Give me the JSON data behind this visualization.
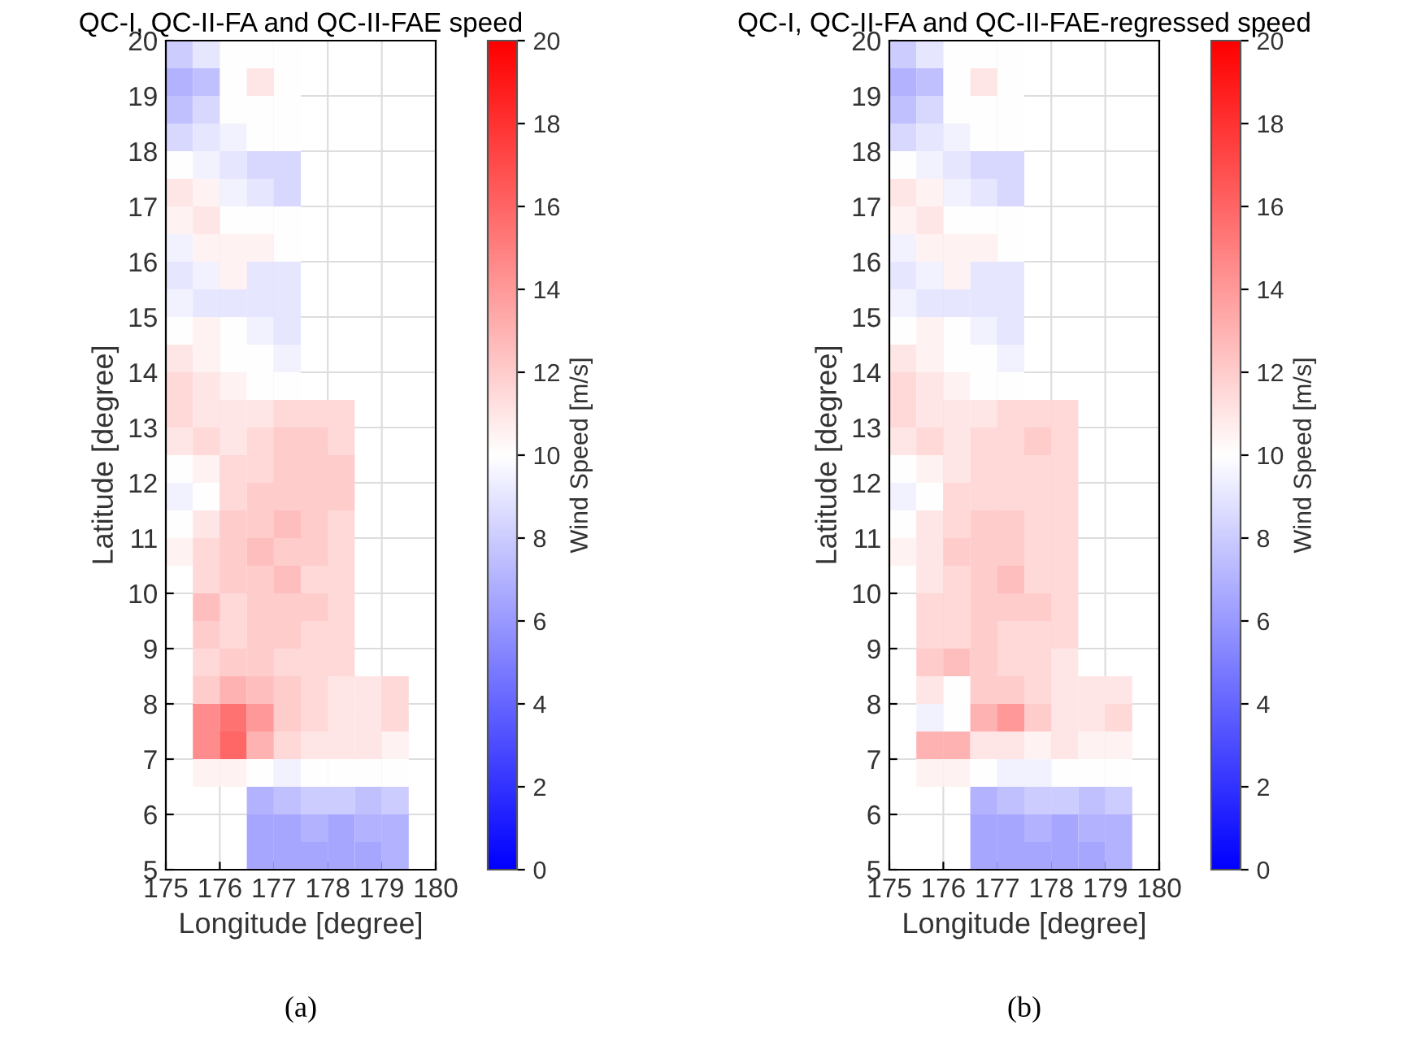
{
  "chart_data": [
    {
      "type": "heatmap",
      "title": "QC-I, QC-II-FA and QC-II-FAE speed",
      "xlabel": "Longitude [degree]",
      "ylabel": "Latitude [degree]",
      "clabel": "Wind Speed [m/s]",
      "annotations": [
        "(a)"
      ],
      "xlim": [
        175,
        180
      ],
      "ylim": [
        5,
        20
      ],
      "xticks": [
        175,
        176,
        177,
        178,
        179,
        180
      ],
      "yticks": [
        5,
        6,
        7,
        8,
        9,
        10,
        11,
        12,
        13,
        14,
        15,
        16,
        17,
        18,
        19,
        20
      ],
      "clim": [
        0,
        20
      ],
      "cticks": [
        0,
        2,
        4,
        6,
        8,
        10,
        12,
        14,
        16,
        18,
        20
      ],
      "grid": true,
      "cells": [
        [
          8,
          9,
          10,
          10,
          10,
          null,
          null,
          null,
          null,
          null
        ],
        [
          7,
          7.5,
          10,
          11,
          10,
          null,
          null,
          null,
          null,
          null
        ],
        [
          7.5,
          8.5,
          10,
          10,
          10,
          null,
          null,
          null,
          null,
          null
        ],
        [
          8.5,
          9,
          9.5,
          10,
          10,
          null,
          null,
          null,
          null,
          null
        ],
        [
          10,
          9.5,
          9,
          8.5,
          8.5,
          null,
          null,
          null,
          null,
          null
        ],
        [
          11,
          10.5,
          9.5,
          9,
          8.5,
          null,
          null,
          null,
          null,
          null
        ],
        [
          10.5,
          11,
          10,
          10,
          10,
          null,
          null,
          null,
          null,
          null
        ],
        [
          9.5,
          10.5,
          10.5,
          10.5,
          10,
          null,
          null,
          null,
          null,
          null
        ],
        [
          9,
          9.5,
          10.5,
          9,
          9,
          null,
          null,
          null,
          null,
          null
        ],
        [
          9.5,
          9,
          9,
          9,
          9,
          null,
          null,
          null,
          null,
          null
        ],
        [
          10,
          10.5,
          10,
          9.5,
          9,
          null,
          null,
          null,
          null,
          null
        ],
        [
          11,
          10.5,
          10,
          10,
          9.5,
          null,
          null,
          null,
          null,
          null
        ],
        [
          11.5,
          11,
          10.5,
          10,
          10,
          null,
          null,
          null,
          null,
          null
        ],
        [
          11.5,
          11,
          11,
          11,
          11.5,
          11.5,
          11.5,
          null,
          null,
          null
        ],
        [
          11,
          11.5,
          11,
          11.5,
          12,
          12,
          11.5,
          null,
          null,
          null
        ],
        [
          10,
          10.5,
          11.5,
          11.5,
          12,
          12,
          12,
          null,
          null,
          null
        ],
        [
          9.5,
          10,
          11.5,
          12,
          12,
          12,
          12,
          null,
          null,
          null
        ],
        [
          10,
          11,
          12,
          12,
          12.5,
          12,
          11.5,
          null,
          null,
          null
        ],
        [
          10.5,
          11.5,
          12,
          12.5,
          12,
          12,
          11.5,
          null,
          null,
          null
        ],
        [
          null,
          11.5,
          12,
          12,
          12.5,
          11.5,
          11.5,
          null,
          null,
          null
        ],
        [
          null,
          12.5,
          11.5,
          12,
          12,
          12,
          11.5,
          null,
          null,
          null
        ],
        [
          null,
          12,
          11.5,
          12,
          12,
          11.5,
          11.5,
          null,
          null,
          null
        ],
        [
          null,
          11.5,
          12,
          12,
          11.5,
          11.5,
          11.5,
          null,
          null,
          null
        ],
        [
          null,
          12,
          13,
          12.5,
          12,
          11.5,
          11,
          11,
          11.5,
          null
        ],
        [
          null,
          14.5,
          15.5,
          14,
          12,
          11.5,
          11,
          11,
          11.5,
          null
        ],
        [
          null,
          14.5,
          16,
          13,
          11.5,
          11,
          11,
          11,
          10.5,
          null
        ],
        [
          null,
          10.5,
          10.5,
          10,
          9.5,
          10,
          10,
          10,
          10,
          null
        ],
        [
          null,
          null,
          null,
          7,
          7.5,
          8,
          8,
          7.5,
          8,
          null
        ],
        [
          null,
          null,
          null,
          6.5,
          6.5,
          7,
          6.5,
          7,
          7,
          null
        ],
        [
          null,
          null,
          null,
          6.5,
          6.5,
          6.5,
          6.5,
          6.5,
          7,
          null
        ]
      ]
    },
    {
      "type": "heatmap",
      "title": "QC-I, QC-II-FA and QC-II-FAE-regressed speed",
      "xlabel": "Longitude [degree]",
      "ylabel": "Latitude [degree]",
      "clabel": "Wind Speed [m/s]",
      "annotations": [
        "(b)"
      ],
      "xlim": [
        175,
        180
      ],
      "ylim": [
        5,
        20
      ],
      "xticks": [
        175,
        176,
        177,
        178,
        179,
        180
      ],
      "yticks": [
        5,
        6,
        7,
        8,
        9,
        10,
        11,
        12,
        13,
        14,
        15,
        16,
        17,
        18,
        19,
        20
      ],
      "clim": [
        0,
        20
      ],
      "cticks": [
        0,
        2,
        4,
        6,
        8,
        10,
        12,
        14,
        16,
        18,
        20
      ],
      "grid": true,
      "cells": [
        [
          8,
          9,
          10,
          10,
          10,
          null,
          null,
          null,
          null,
          null
        ],
        [
          7,
          7.5,
          10,
          11,
          10,
          null,
          null,
          null,
          null,
          null
        ],
        [
          7.5,
          8.5,
          10,
          10,
          10,
          null,
          null,
          null,
          null,
          null
        ],
        [
          8.5,
          9,
          9.5,
          10,
          10,
          null,
          null,
          null,
          null,
          null
        ],
        [
          10,
          9.5,
          9,
          8.5,
          8.5,
          null,
          null,
          null,
          null,
          null
        ],
        [
          11,
          10.5,
          9.5,
          9,
          8.5,
          null,
          null,
          null,
          null,
          null
        ],
        [
          10.5,
          11,
          10,
          10,
          10,
          null,
          null,
          null,
          null,
          null
        ],
        [
          9.5,
          10.5,
          10.5,
          10.5,
          10,
          null,
          null,
          null,
          null,
          null
        ],
        [
          9,
          9.5,
          10.5,
          9,
          9,
          null,
          null,
          null,
          null,
          null
        ],
        [
          9.5,
          9,
          9,
          9,
          9,
          null,
          null,
          null,
          null,
          null
        ],
        [
          10,
          10.5,
          10,
          9.5,
          9,
          null,
          null,
          null,
          null,
          null
        ],
        [
          11,
          10.5,
          10,
          10,
          9.5,
          null,
          null,
          null,
          null,
          null
        ],
        [
          11.5,
          11,
          10.5,
          10,
          10,
          null,
          null,
          null,
          null,
          null
        ],
        [
          11.5,
          11,
          11,
          11,
          11.5,
          11.5,
          11.5,
          null,
          null,
          null
        ],
        [
          11,
          11.5,
          11,
          11.5,
          11.5,
          12,
          11.5,
          null,
          null,
          null
        ],
        [
          10,
          10.5,
          11,
          11.5,
          11.5,
          11.5,
          11.5,
          null,
          null,
          null
        ],
        [
          9.5,
          10,
          11.5,
          11.5,
          11.5,
          11.5,
          11.5,
          null,
          null,
          null
        ],
        [
          10,
          11,
          11.5,
          12,
          12,
          11.5,
          11.5,
          null,
          null,
          null
        ],
        [
          10.5,
          11,
          12,
          12,
          12,
          11.5,
          11.5,
          null,
          null,
          null
        ],
        [
          null,
          11,
          11.5,
          12,
          12.5,
          11.5,
          11.5,
          null,
          null,
          null
        ],
        [
          null,
          11.5,
          11.5,
          12,
          12,
          12,
          11.5,
          null,
          null,
          null
        ],
        [
          null,
          11.5,
          11.5,
          12,
          11.5,
          11.5,
          11.5,
          null,
          null,
          null
        ],
        [
          null,
          12,
          12.5,
          12,
          11.5,
          11.5,
          11,
          null,
          null,
          null
        ],
        [
          null,
          11,
          10,
          12,
          12,
          11.5,
          11,
          11,
          11,
          null
        ],
        [
          null,
          9.5,
          10,
          13,
          14,
          12,
          11,
          11,
          11.5,
          null
        ],
        [
          null,
          13,
          13,
          11,
          11,
          10.5,
          11,
          10.5,
          10.5,
          null
        ],
        [
          null,
          10.5,
          10.5,
          10,
          9.5,
          9.5,
          10,
          10,
          10,
          null
        ],
        [
          null,
          null,
          null,
          7,
          7.5,
          8,
          8,
          7.5,
          8,
          null
        ],
        [
          null,
          null,
          null,
          6.5,
          6.5,
          7,
          6.5,
          7,
          7,
          null
        ],
        [
          null,
          null,
          null,
          6.5,
          6.5,
          6.5,
          6.5,
          6.5,
          7,
          null
        ]
      ]
    }
  ]
}
